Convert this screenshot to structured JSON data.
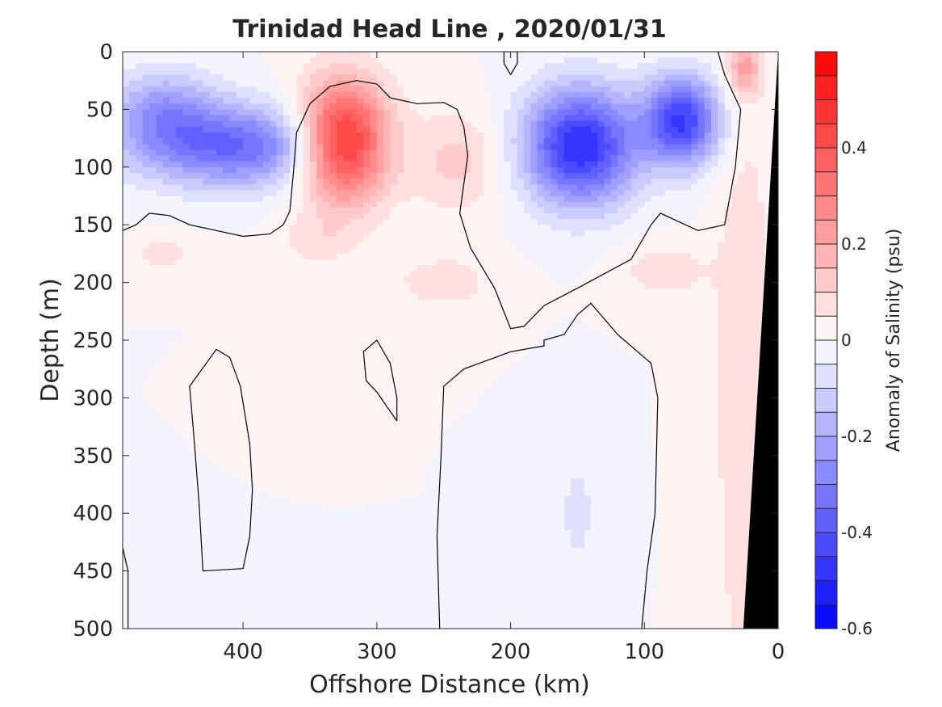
{
  "chart_data": {
    "type": "heatmap",
    "title": "Trinidad Head Line , 2020/01/31",
    "xlabel": "Offshore Distance (km)",
    "ylabel": "Depth (m)",
    "colorbar_label": "Anomaly of Salinity (psu)",
    "xlim": [
      490,
      0
    ],
    "ylim": [
      0,
      500
    ],
    "x_reversed": true,
    "y_reversed": true,
    "x_ticks": [
      400,
      300,
      200,
      100,
      0
    ],
    "y_ticks": [
      0,
      50,
      100,
      150,
      200,
      250,
      300,
      350,
      400,
      450,
      500
    ],
    "colorbar_range": [
      -0.6,
      0.6
    ],
    "colorbar_step": 0.05,
    "colorbar_ticks": [
      -0.6,
      -0.4,
      -0.2,
      0,
      0.2,
      0.4
    ],
    "colorbar_tick_labels": [
      "-0.6",
      "-0.4",
      "-0.2",
      "0",
      "0.2",
      "0.4"
    ],
    "colors": {
      "positive_max": "#ff0000",
      "negative_max": "#0000ff",
      "zero": "#ffffff",
      "contour_line": "#000000",
      "bathymetry": "#000000"
    },
    "anomaly_features": [
      {
        "x": 325,
        "y": 78,
        "peak": 0.55,
        "rx": 34,
        "ry": 52
      },
      {
        "x": 240,
        "y": 95,
        "peak": 0.12,
        "rx": 35,
        "ry": 45
      },
      {
        "x": 250,
        "y": 200,
        "peak": 0.08,
        "rx": 40,
        "ry": 25
      },
      {
        "x": 345,
        "y": 165,
        "peak": 0.07,
        "rx": 30,
        "ry": 20
      },
      {
        "x": 460,
        "y": 175,
        "peak": 0.07,
        "rx": 30,
        "ry": 15
      },
      {
        "x": 25,
        "y": 15,
        "peak": 0.2,
        "rx": 12,
        "ry": 22
      },
      {
        "x": 25,
        "y": 300,
        "peak": 0.1,
        "rx": 22,
        "ry": 280
      },
      {
        "x": 85,
        "y": 190,
        "peak": 0.08,
        "rx": 35,
        "ry": 25
      },
      {
        "x": 148,
        "y": 82,
        "peak": -0.5,
        "rx": 42,
        "ry": 50
      },
      {
        "x": 72,
        "y": 60,
        "peak": -0.45,
        "rx": 28,
        "ry": 38
      },
      {
        "x": 405,
        "y": 82,
        "peak": -0.35,
        "rx": 75,
        "ry": 35
      },
      {
        "x": 460,
        "y": 50,
        "peak": -0.2,
        "rx": 40,
        "ry": 35
      },
      {
        "x": 150,
        "y": 400,
        "peak": -0.06,
        "rx": 20,
        "ry": 70
      }
    ],
    "zero_contours": [
      [
        [
          490,
          155
        ],
        [
          480,
          150
        ],
        [
          470,
          140
        ],
        [
          455,
          142
        ],
        [
          440,
          150
        ],
        [
          420,
          155
        ],
        [
          400,
          160
        ],
        [
          380,
          158
        ],
        [
          370,
          150
        ],
        [
          365,
          138
        ],
        [
          362,
          100
        ],
        [
          360,
          70
        ],
        [
          350,
          45
        ],
        [
          335,
          30
        ],
        [
          315,
          25
        ],
        [
          300,
          28
        ],
        [
          290,
          40
        ],
        [
          270,
          45
        ],
        [
          250,
          44
        ],
        [
          240,
          50
        ],
        [
          235,
          65
        ],
        [
          232,
          90
        ],
        [
          238,
          140
        ],
        [
          230,
          170
        ],
        [
          212,
          205
        ],
        [
          200,
          240
        ],
        [
          190,
          238
        ],
        [
          175,
          220
        ],
        [
          150,
          205
        ],
        [
          110,
          180
        ],
        [
          95,
          150
        ],
        [
          88,
          140
        ],
        [
          60,
          155
        ],
        [
          40,
          150
        ],
        [
          32,
          100
        ],
        [
          28,
          50
        ],
        [
          40,
          20
        ],
        [
          45,
          0
        ]
      ],
      [
        [
          253,
          500
        ],
        [
          255,
          420
        ],
        [
          252,
          350
        ],
        [
          250,
          290
        ],
        [
          235,
          275
        ],
        [
          200,
          260
        ],
        [
          175,
          255
        ],
        [
          175,
          250
        ],
        [
          160,
          245
        ],
        [
          150,
          228
        ],
        [
          140,
          218
        ],
        [
          120,
          245
        ],
        [
          95,
          270
        ],
        [
          90,
          300
        ],
        [
          92,
          400
        ],
        [
          98,
          450
        ],
        [
          102,
          500
        ]
      ],
      [
        [
          285,
          320
        ],
        [
          300,
          295
        ],
        [
          308,
          285
        ],
        [
          310,
          260
        ],
        [
          300,
          250
        ],
        [
          290,
          270
        ],
        [
          285,
          300
        ],
        [
          285,
          320
        ]
      ],
      [
        [
          400,
          448
        ],
        [
          395,
          420
        ],
        [
          393,
          380
        ],
        [
          395,
          340
        ],
        [
          402,
          290
        ],
        [
          410,
          265
        ],
        [
          420,
          258
        ],
        [
          440,
          290
        ],
        [
          437,
          330
        ],
        [
          433,
          390
        ],
        [
          430,
          450
        ],
        [
          400,
          448
        ]
      ],
      [
        [
          200,
          20
        ],
        [
          205,
          10
        ],
        [
          205,
          0
        ],
        [
          195,
          0
        ],
        [
          195,
          10
        ],
        [
          200,
          20
        ]
      ],
      [
        [
          490,
          430
        ],
        [
          486,
          450
        ],
        [
          486,
          500
        ]
      ]
    ],
    "bathymetry_polygon": [
      [
        0,
        0
      ],
      [
        26,
        500
      ],
      [
        0,
        500
      ]
    ]
  }
}
